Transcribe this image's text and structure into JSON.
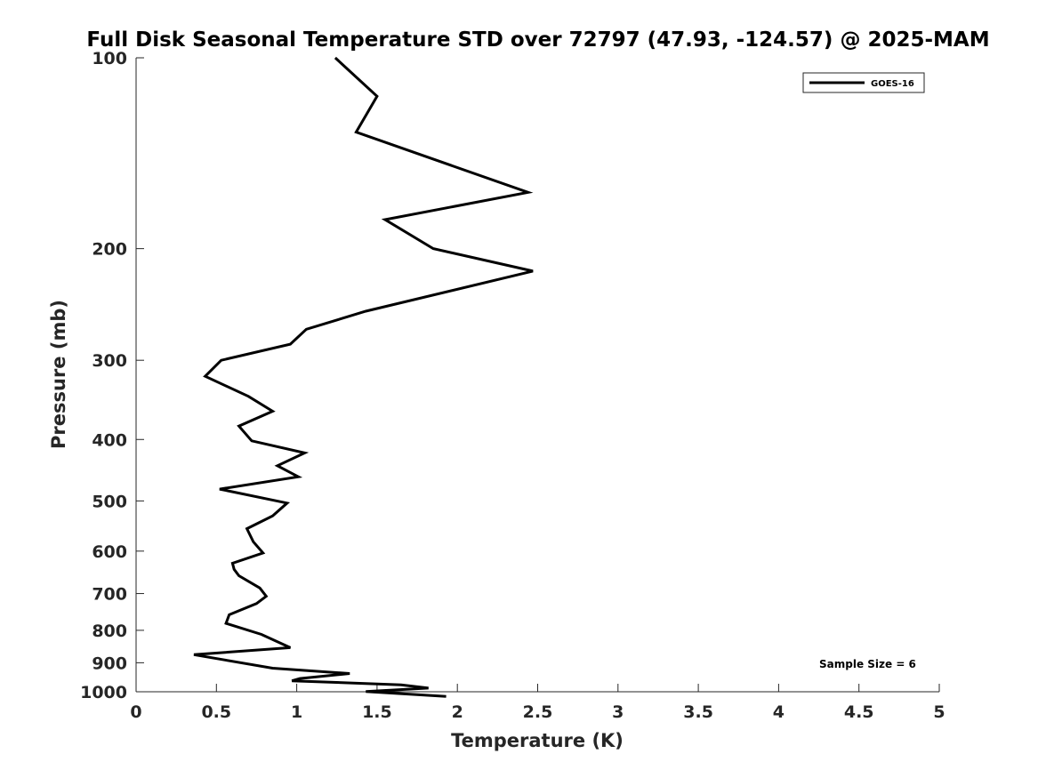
{
  "chart_data": {
    "type": "line",
    "title": "Full Disk Seasonal Temperature STD over 72797 (47.93, -124.57) @ 2025-MAM",
    "xlabel": "Temperature (K)",
    "ylabel": "Pressure (mb)",
    "xlim": [
      0,
      5
    ],
    "ylim": [
      100,
      1000
    ],
    "yscale": "log",
    "y_reversed": true,
    "grid": false,
    "legend_position": "top-right",
    "x_ticks": [
      0,
      0.5,
      1,
      1.5,
      2,
      2.5,
      3,
      3.5,
      4,
      4.5,
      5
    ],
    "x_tick_labels": [
      "0",
      "0.5",
      "1",
      "1.5",
      "2",
      "2.5",
      "3",
      "3.5",
      "4",
      "4.5",
      "5"
    ],
    "y_ticks": [
      100,
      200,
      300,
      400,
      500,
      600,
      700,
      800,
      900,
      1000
    ],
    "y_tick_labels": [
      "100",
      "200",
      "300",
      "400",
      "500",
      "600",
      "700",
      "800",
      "900",
      "1000"
    ],
    "series": [
      {
        "name": "GOES-16",
        "color": "#000000",
        "x": [
          1.24,
          1.5,
          1.37,
          2.44,
          1.55,
          1.85,
          2.47,
          1.43,
          1.06,
          0.96,
          0.53,
          0.43,
          0.7,
          0.85,
          0.64,
          0.72,
          1.05,
          0.88,
          1.01,
          0.52,
          0.94,
          0.85,
          0.69,
          0.73,
          0.79,
          0.6,
          0.61,
          0.64,
          0.77,
          0.81,
          0.75,
          0.58,
          0.56,
          0.78,
          0.96,
          0.36,
          0.85,
          1.33,
          1.02,
          0.97,
          1.65,
          1.82,
          1.43,
          1.93
        ],
        "y": [
          100,
          115,
          131,
          163,
          180,
          200,
          217,
          251,
          268,
          283,
          300,
          318,
          342,
          361,
          381,
          402,
          420,
          440,
          458,
          479,
          504,
          528,
          553,
          580,
          604,
          627,
          641,
          656,
          686,
          707,
          726,
          756,
          780,
          812,
          852,
          874,
          918,
          936,
          953,
          961,
          975,
          987,
          999,
          1017
        ]
      }
    ],
    "annotation": "Sample Size = 6"
  }
}
